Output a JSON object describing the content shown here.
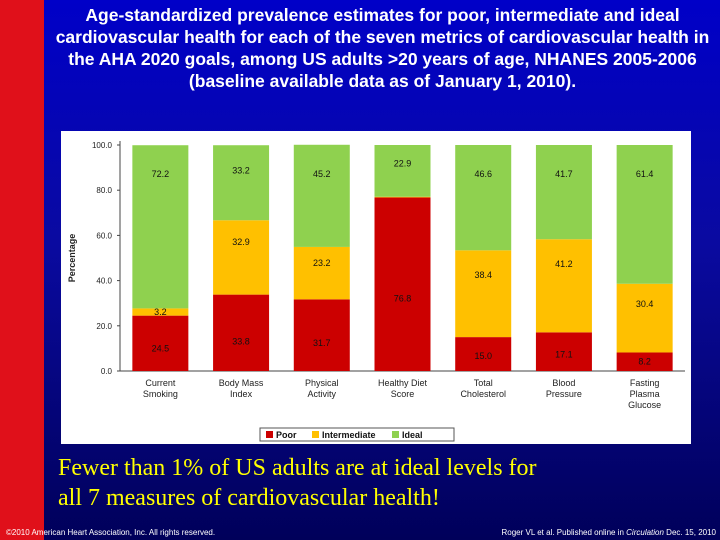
{
  "slide": {
    "title": "Age-standardized prevalence estimates for poor, intermediate and ideal cardiovascular health for each of the seven metrics of cardiovascular health in the AHA 2020 goals, among US adults >20 years of age, NHANES 2005-2006 (baseline available data as of January 1, 2010).",
    "tagline_line1": "Fewer than 1% of US adults are at ideal levels for",
    "tagline_line2": "all 7 measures of cardiovascular health!",
    "footer_left": "©2010 American Heart Association, Inc. All rights reserved.",
    "footer_right_prefix": "Roger VL et al. Published online in ",
    "footer_right_journal": "Circulation",
    "footer_right_suffix": " Dec. 15, 2010"
  },
  "colors": {
    "background": "#0a0ab4",
    "accent_red": "#e0101a",
    "title_text": "#ffffff",
    "tagline_text": "#ffff00",
    "poor": "#cc0000",
    "intermediate": "#ffc000",
    "ideal": "#8fd14f"
  },
  "chart_data": {
    "type": "bar",
    "stacked": true,
    "categories": [
      [
        "Current",
        "Smoking"
      ],
      [
        "Body Mass",
        "Index"
      ],
      [
        "Physical",
        "Activity"
      ],
      [
        "Healthy Diet",
        "Score"
      ],
      [
        "Total",
        "Cholesterol"
      ],
      [
        "Blood",
        "Pressure"
      ],
      [
        "Fasting",
        "Plasma",
        "Glucose"
      ]
    ],
    "series": [
      {
        "name": "Poor",
        "color": "#cc0000",
        "values": [
          24.5,
          33.8,
          31.7,
          76.8,
          15.0,
          17.1,
          8.2
        ]
      },
      {
        "name": "Intermediate",
        "color": "#ffc000",
        "values": [
          3.2,
          32.9,
          23.2,
          0.3,
          38.4,
          41.2,
          30.4
        ]
      },
      {
        "name": "Ideal",
        "color": "#8fd14f",
        "values": [
          72.2,
          33.2,
          45.2,
          22.9,
          46.6,
          41.7,
          61.4
        ]
      }
    ],
    "data_labels": [
      [
        "24.5",
        "3.2",
        "72.2"
      ],
      [
        "33.8",
        "32.9",
        "33.2"
      ],
      [
        "31.7",
        "23.2",
        "45.2"
      ],
      [
        "76.8",
        "",
        "22.9"
      ],
      [
        "15.0",
        "38.4",
        "46.6"
      ],
      [
        "17.1",
        "41.2",
        "41.7"
      ],
      [
        "8.2",
        "30.4",
        "61.4"
      ]
    ],
    "ylabel": "Percentage",
    "ylim": [
      0,
      100
    ],
    "yticks": [
      "0.0",
      "20.0",
      "40.0",
      "60.0",
      "80.0",
      "100.0"
    ],
    "legend_position": "bottom",
    "grid": false
  }
}
